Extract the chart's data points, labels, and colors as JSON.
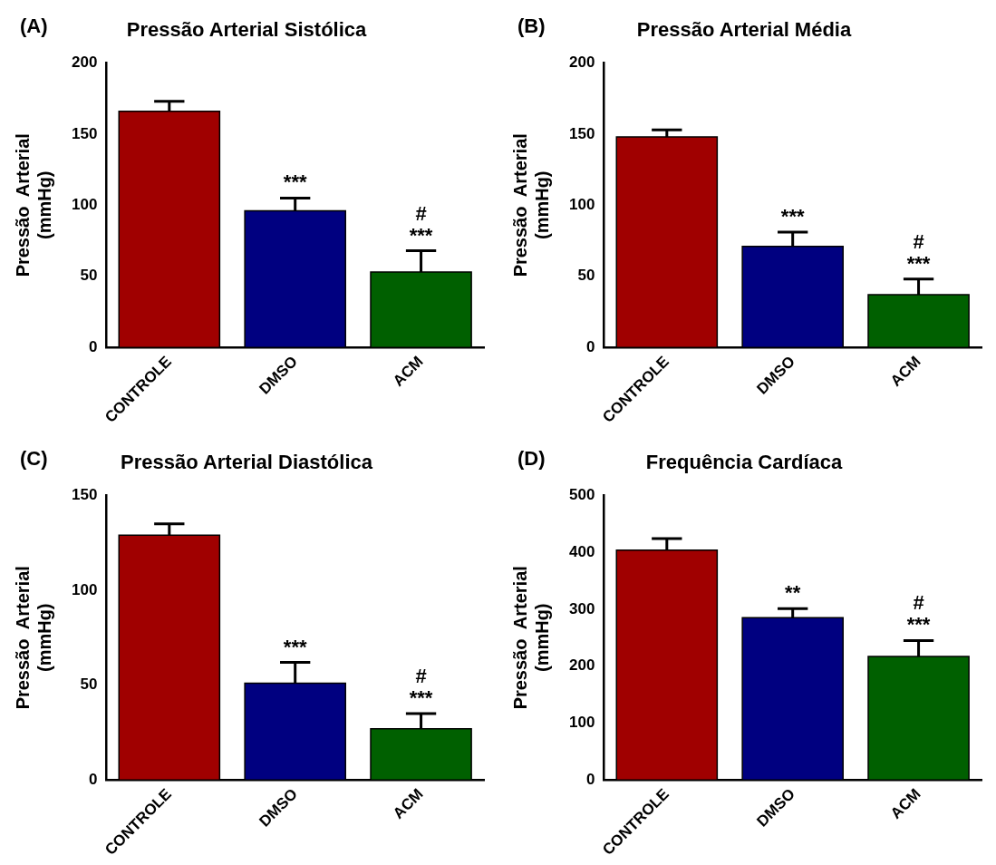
{
  "chart_data": [
    {
      "type": "bar",
      "title": "Pressão Arterial Sistólica",
      "ylabel": "Pressão  Arterial\n(mmHg)",
      "categories": [
        "CONTROLE",
        "DMSO",
        "ACM"
      ],
      "values": [
        166,
        96,
        53
      ],
      "errors": [
        7,
        9,
        15
      ],
      "colors": [
        "#a00000",
        "#000080",
        "#006000"
      ],
      "ylim": [
        0,
        200
      ],
      "yticks": [
        0,
        50,
        100,
        150,
        200
      ],
      "grid": false,
      "legend": false,
      "annotations": [
        "(A)",
        {
          "text": "***",
          "x": "DMSO",
          "y": 105
        },
        {
          "text": "#",
          "x": "ACM",
          "y": 68
        },
        {
          "text": "***",
          "x": "ACM",
          "y": 68
        }
      ]
    },
    {
      "type": "bar",
      "title": "Pressão Arterial Média",
      "ylabel": "Pressão  Arterial\n(mmHg)",
      "categories": [
        "CONTROLE",
        "DMSO",
        "ACM"
      ],
      "values": [
        148,
        71,
        37
      ],
      "errors": [
        5,
        10,
        11
      ],
      "colors": [
        "#a00000",
        "#000080",
        "#006000"
      ],
      "ylim": [
        0,
        200
      ],
      "yticks": [
        0,
        50,
        100,
        150,
        200
      ],
      "grid": false,
      "legend": false,
      "annotations": [
        "(B)",
        {
          "text": "***",
          "x": "DMSO",
          "y": 81
        },
        {
          "text": "#",
          "x": "ACM",
          "y": 48
        },
        {
          "text": "***",
          "x": "ACM",
          "y": 48
        }
      ]
    },
    {
      "type": "bar",
      "title": "Pressão Arterial Diastólica",
      "ylabel": "Pressão  Arterial\n(mmHg)",
      "categories": [
        "CONTROLE",
        "DMSO",
        "ACM"
      ],
      "values": [
        129,
        51,
        27
      ],
      "errors": [
        6,
        11,
        8
      ],
      "colors": [
        "#a00000",
        "#000080",
        "#006000"
      ],
      "ylim": [
        0,
        150
      ],
      "yticks": [
        0,
        50,
        100,
        150
      ],
      "grid": false,
      "legend": false,
      "annotations": [
        "(C)",
        {
          "text": "***",
          "x": "DMSO",
          "y": 62
        },
        {
          "text": "#",
          "x": "ACM",
          "y": 35
        },
        {
          "text": "***",
          "x": "ACM",
          "y": 35
        }
      ]
    },
    {
      "type": "bar",
      "title": "Frequência Cardíaca",
      "ylabel": "Pressão  Arterial\n(mmHg)",
      "categories": [
        "CONTROLE",
        "DMSO",
        "ACM"
      ],
      "values": [
        404,
        285,
        217
      ],
      "errors": [
        20,
        16,
        28
      ],
      "colors": [
        "#a00000",
        "#000080",
        "#006000"
      ],
      "ylim": [
        0,
        500
      ],
      "yticks": [
        0,
        100,
        200,
        300,
        400,
        500
      ],
      "grid": false,
      "legend": false,
      "annotations": [
        "(D)",
        {
          "text": "**",
          "x": "DMSO",
          "y": 301
        },
        {
          "text": "#",
          "x": "ACM",
          "y": 245
        },
        {
          "text": "***",
          "x": "ACM",
          "y": 245
        }
      ]
    }
  ]
}
